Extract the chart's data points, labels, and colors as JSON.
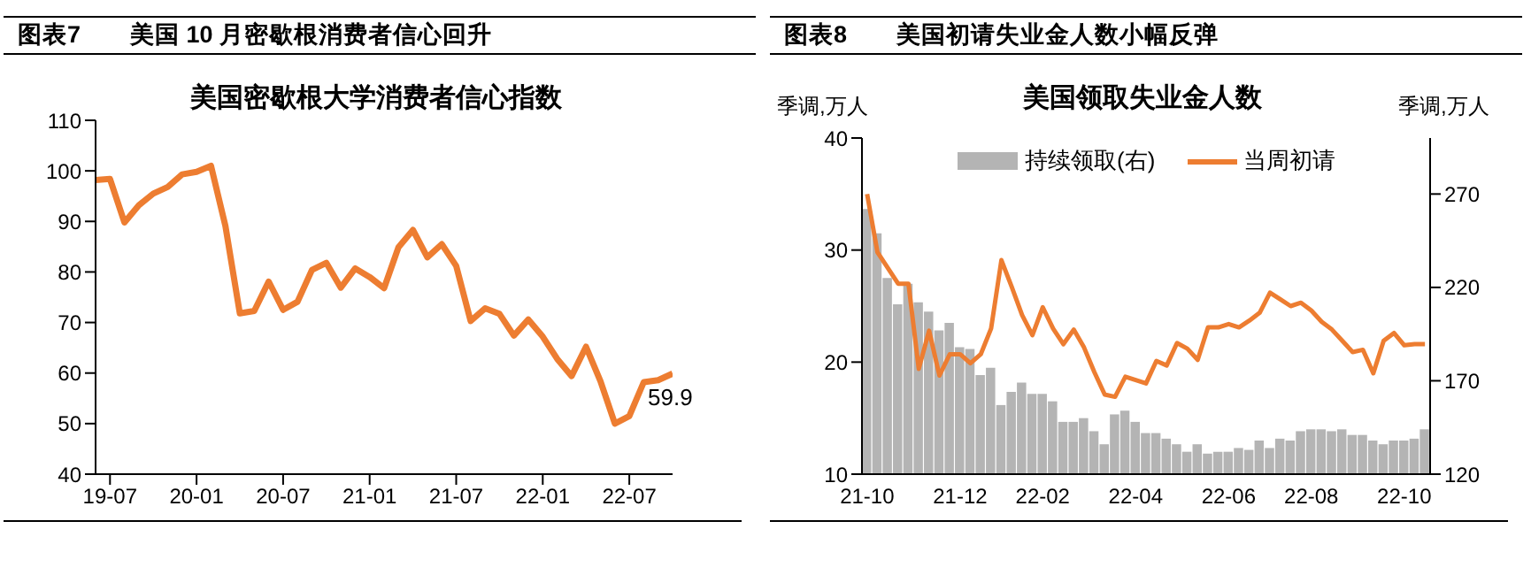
{
  "chart_data": [
    {
      "type": "line",
      "title": "图表7　　美国 10 月密歇根消费者信心回升",
      "subtitle": "美国密歇根大学消费者信心指数",
      "categories": [
        null,
        "19-07",
        null,
        null,
        null,
        null,
        null,
        "20-01",
        null,
        null,
        null,
        null,
        null,
        "20-07",
        null,
        null,
        null,
        null,
        null,
        "21-01",
        null,
        null,
        null,
        null,
        null,
        "21-07",
        null,
        null,
        null,
        null,
        null,
        "22-01",
        null,
        null,
        null,
        null,
        null,
        "22-07",
        null,
        null,
        null
      ],
      "series": [
        {
          "color": "#ed7d31",
          "values": [
            98.2,
            98.4,
            89.8,
            93.2,
            95.5,
            96.8,
            99.3,
            99.8,
            101.0,
            89.1,
            71.8,
            72.3,
            78.1,
            72.5,
            74.1,
            80.4,
            81.8,
            76.9,
            80.7,
            79.0,
            76.8,
            84.9,
            88.3,
            82.9,
            85.5,
            81.2,
            70.3,
            72.8,
            71.7,
            67.4,
            70.6,
            67.2,
            62.8,
            59.4,
            65.2,
            58.4,
            50.0,
            51.5,
            58.2,
            58.6,
            59.9
          ],
          "value_labels": [
            null,
            null,
            null,
            null,
            null,
            null,
            null,
            null,
            null,
            null,
            null,
            null,
            null,
            null,
            null,
            null,
            null,
            null,
            null,
            null,
            null,
            null,
            null,
            null,
            null,
            null,
            null,
            null,
            null,
            null,
            null,
            null,
            null,
            null,
            null,
            null,
            null,
            null,
            null,
            null,
            "59.9"
          ]
        }
      ],
      "ylim": [
        40,
        110
      ],
      "yticks": [
        40,
        50,
        60,
        70,
        80,
        90,
        100,
        110
      ]
    },
    {
      "type": "line",
      "title": "图表8　　美国初请失业金人数小幅反弹",
      "subtitle": "美国领取失业金人数",
      "ylabel": "季调,万人",
      "y2label": "季调,万人",
      "legend": "top",
      "categories": [
        "21-10",
        null,
        null,
        null,
        null,
        null,
        null,
        null,
        null,
        "21-12",
        null,
        null,
        null,
        null,
        null,
        null,
        null,
        "22-02",
        null,
        null,
        null,
        null,
        null,
        null,
        null,
        null,
        "22-04",
        null,
        null,
        null,
        null,
        null,
        null,
        null,
        null,
        "22-06",
        null,
        null,
        null,
        null,
        null,
        null,
        null,
        "22-08",
        null,
        null,
        null,
        null,
        null,
        null,
        null,
        null,
        "22-10",
        null,
        null
      ],
      "series": [
        {
          "name": "持续领取(右)",
          "type": "bar",
          "axis": "y2",
          "color": "#b4b4b4",
          "values": [
            262,
            249,
            225,
            211,
            222,
            212,
            207,
            197,
            201,
            188,
            187,
            173,
            177,
            157,
            164,
            169,
            163,
            163,
            159,
            148,
            148,
            150,
            143,
            136,
            152,
            154,
            148,
            142,
            142,
            139,
            136,
            132,
            136,
            131,
            132,
            132,
            134,
            133,
            138,
            134,
            139,
            138,
            143,
            144,
            144,
            143,
            144,
            141,
            141,
            138,
            136,
            138,
            138,
            139,
            144
          ]
        },
        {
          "name": "当周初请",
          "color": "#ed7d31",
          "values": [
            35.0,
            29.8,
            28.4,
            27.0,
            27.0,
            19.4,
            22.8,
            18.8,
            20.7,
            20.7,
            19.9,
            20.7,
            23.0,
            29.1,
            26.7,
            24.2,
            22.4,
            24.9,
            23.0,
            21.6,
            22.9,
            21.3,
            19.1,
            17.1,
            16.9,
            18.7,
            18.4,
            18.1,
            20.1,
            19.7,
            21.7,
            21.2,
            20.2,
            23.1,
            23.1,
            23.4,
            23.1,
            23.7,
            24.4,
            26.2,
            25.6,
            25.0,
            25.3,
            24.6,
            23.6,
            22.9,
            21.9,
            20.9,
            21.1,
            19.0,
            21.9,
            22.6,
            21.5,
            21.6,
            21.6
          ]
        }
      ],
      "ylim": [
        10,
        40
      ],
      "yticks": [
        10,
        20,
        30,
        40
      ],
      "y2lim": [
        120,
        300
      ],
      "y2ticks": [
        120,
        170,
        220,
        270
      ]
    }
  ]
}
